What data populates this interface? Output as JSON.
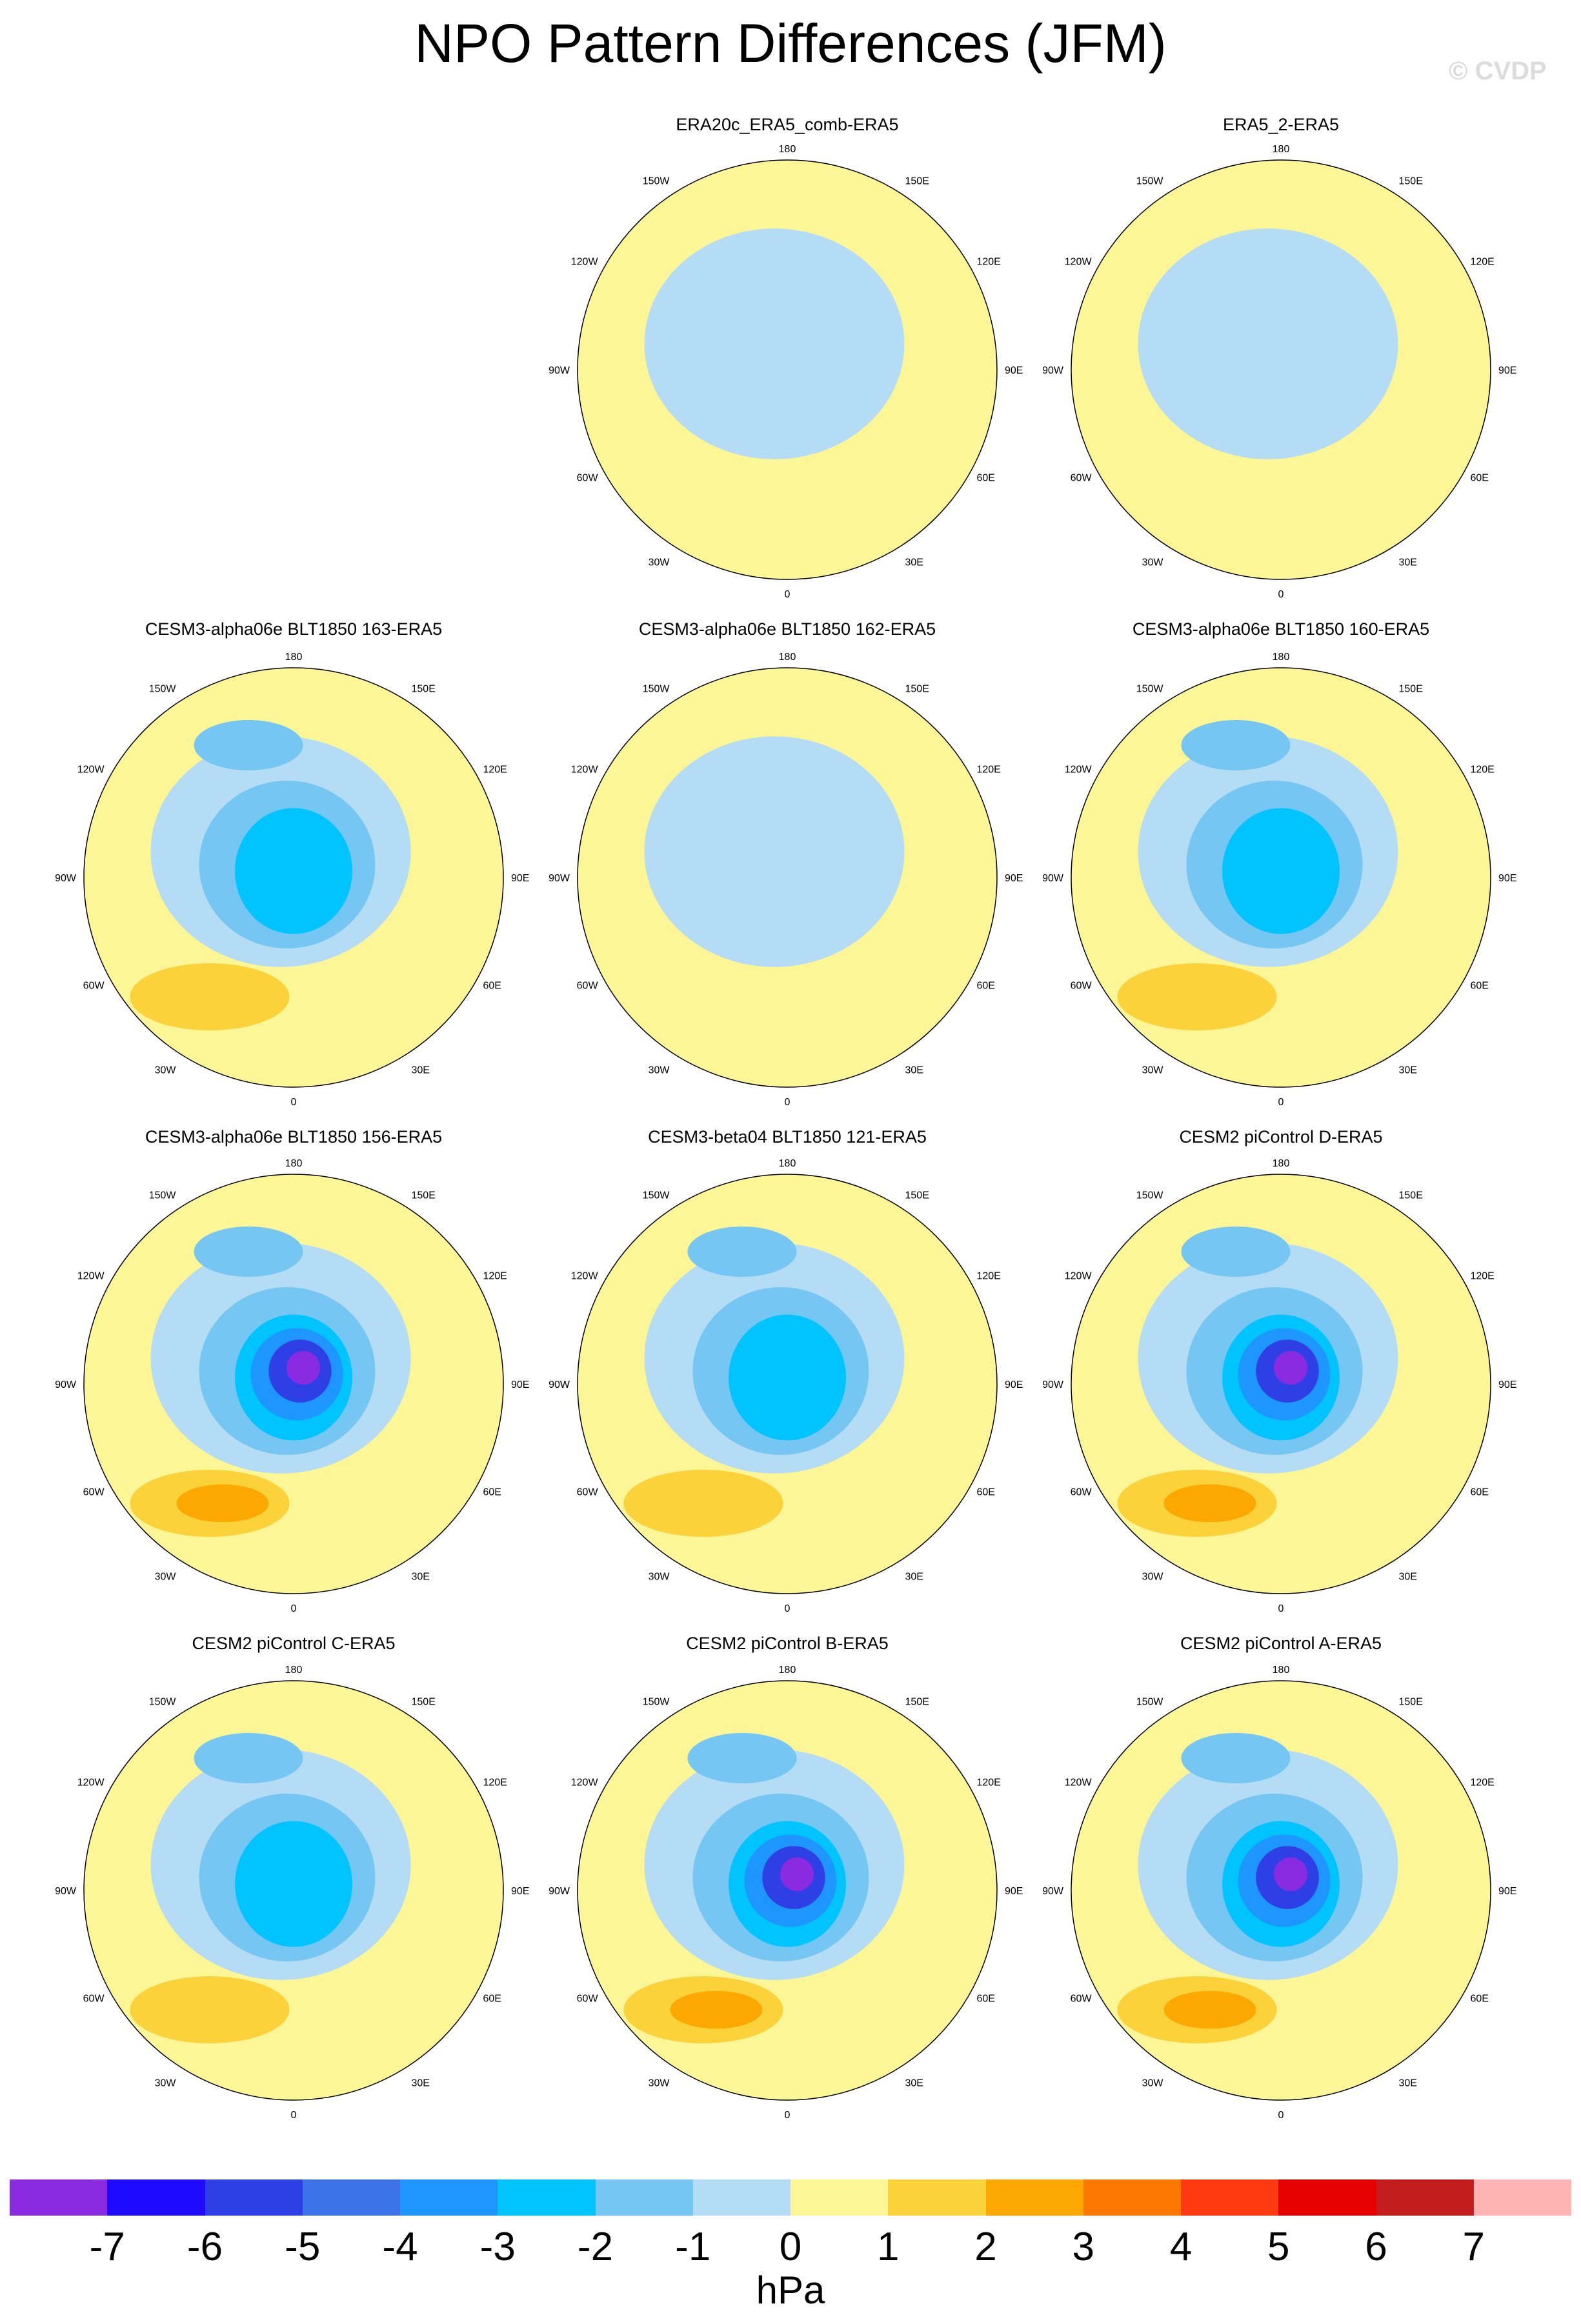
{
  "title": "NPO Pattern Differences (JFM)",
  "copyright": "© CVDP",
  "lon_labels": {
    "top": "180",
    "top_left": "150W",
    "top_right": "150E",
    "upper_left": "120W",
    "upper_right": "120E",
    "left": "90W",
    "right": "90E",
    "lower_left": "60W",
    "lower_right": "60E",
    "bottom_left": "30W",
    "bottom_right": "30E",
    "bottom": "0"
  },
  "panels": [
    {
      "title": "ERA20c_ERA5_comb-ERA5",
      "row": 0,
      "col": 1,
      "levels": "weak",
      "dipole": 0
    },
    {
      "title": "ERA5_2-ERA5",
      "row": 0,
      "col": 2,
      "levels": "weak",
      "dipole": 0
    },
    {
      "title": "CESM3-alpha06e BLT1850 163-ERA5",
      "row": 1,
      "col": 0,
      "levels": "moderate",
      "dipole": 1
    },
    {
      "title": "CESM3-alpha06e BLT1850 162-ERA5",
      "row": 1,
      "col": 1,
      "levels": "weak",
      "dipole": 0
    },
    {
      "title": "CESM3-alpha06e BLT1850 160-ERA5",
      "row": 1,
      "col": 2,
      "levels": "moderate",
      "dipole": 1
    },
    {
      "title": "CESM3-alpha06e BLT1850 156-ERA5",
      "row": 2,
      "col": 0,
      "levels": "strong",
      "dipole": 1
    },
    {
      "title": "CESM3-beta04 BLT1850 121-ERA5",
      "row": 2,
      "col": 1,
      "levels": "moderate",
      "dipole": 1
    },
    {
      "title": "CESM2 piControl D-ERA5",
      "row": 2,
      "col": 2,
      "levels": "strong",
      "dipole": 1
    },
    {
      "title": "CESM2 piControl C-ERA5",
      "row": 3,
      "col": 0,
      "levels": "moderate",
      "dipole": 1
    },
    {
      "title": "CESM2 piControl B-ERA5",
      "row": 3,
      "col": 1,
      "levels": "strong",
      "dipole": 1
    },
    {
      "title": "CESM2 piControl A-ERA5",
      "row": 3,
      "col": 2,
      "levels": "strong",
      "dipole": 1
    }
  ],
  "colorbar": {
    "colors": [
      "#8a2be2",
      "#1e0aff",
      "#2f3fe6",
      "#3b72e8",
      "#1e96ff",
      "#00c4ff",
      "#75c6f2",
      "#b4dcf4",
      "#fcf697",
      "#fcd23a",
      "#fca800",
      "#fc7800",
      "#ff3a10",
      "#e60000",
      "#c31d1d",
      "#ffb4b4"
    ],
    "ticks": [
      "-7",
      "-6",
      "-5",
      "-4",
      "-3",
      "-2",
      "-1",
      "0",
      "1",
      "2",
      "3",
      "4",
      "5",
      "6",
      "7"
    ],
    "units": "hPa"
  }
}
